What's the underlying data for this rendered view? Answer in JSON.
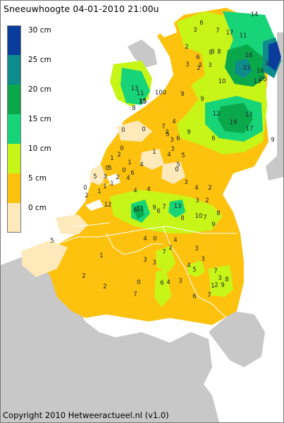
{
  "title": "Sneeuwhoogte 04-01-2010 21:00u",
  "footer": "Copyright 2010 Hetweeractueel.nl (v1.0)",
  "legend": [
    {
      "label": "30 cm",
      "color": "#0a3c9c"
    },
    {
      "label": "25 cm",
      "color": "#0e8c8c"
    },
    {
      "label": "20 cm",
      "color": "#0aa84a"
    },
    {
      "label": "15 cm",
      "color": "#17d478"
    },
    {
      "label": "10 cm",
      "color": "#c8f518"
    },
    {
      "label": "5 cm",
      "color": "#fcc20e"
    },
    {
      "label": "0 cm",
      "color": "#fde9b9"
    }
  ],
  "colors": {
    "background": "#ffffff",
    "land_neighbours": "#c8c8c8",
    "sea": "#ffffff",
    "border_lines": "#ffffff"
  },
  "stations": [
    "14",
    "6",
    "17",
    "11",
    "7",
    "3",
    "2",
    "3",
    "2",
    "8",
    "6",
    "3",
    "3",
    "3",
    "16",
    "23",
    "16",
    "20",
    "3",
    "13",
    "8",
    "13",
    "11",
    "15",
    "100",
    "8",
    "15",
    "10",
    "9",
    "9",
    "12",
    "19",
    "13",
    "17",
    "6",
    "4",
    "9",
    "9",
    "3",
    "2",
    "0",
    "0",
    "0",
    "2",
    "1",
    "1",
    "4",
    "4",
    "6",
    "2",
    "1",
    "0",
    "0",
    "1",
    "3",
    "4",
    "5",
    "7",
    "6",
    "5",
    "3",
    "5",
    "0",
    "5",
    "1",
    "0",
    "1",
    "2",
    "4",
    "4",
    "3",
    "3",
    "2",
    "2",
    "4",
    "12",
    "6",
    "11",
    "6",
    "9",
    "7",
    "13",
    "8",
    "7",
    "10",
    "8",
    "9",
    "5",
    "5",
    "0",
    "4",
    "3",
    "3",
    "7",
    "4",
    "3",
    "3",
    "4",
    "2",
    "1",
    "2",
    "2",
    "7",
    "6",
    "5",
    "4",
    "3",
    "7",
    "7",
    "6",
    "8",
    "2",
    "3",
    "9",
    "1",
    "0"
  ]
}
